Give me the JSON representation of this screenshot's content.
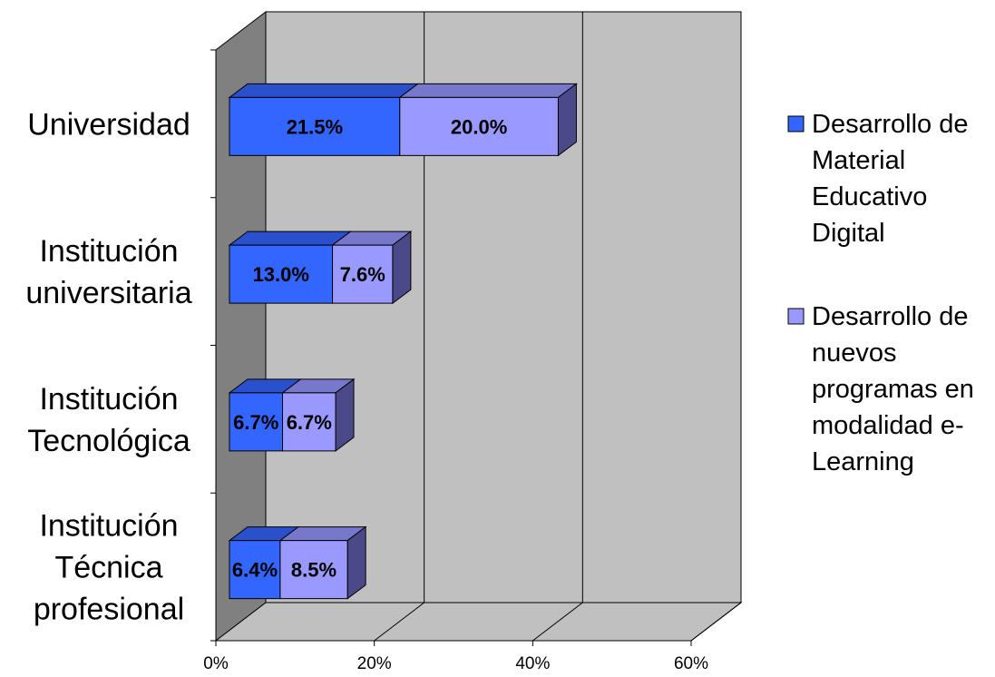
{
  "chart_data": {
    "type": "bar",
    "orientation": "horizontal",
    "stacked": true,
    "three_d": true,
    "categories": [
      "Universidad",
      "Institución universitaria",
      "Institución Tecnológica",
      "Institución Técnica profesional"
    ],
    "series": [
      {
        "name": "Desarrollo de Material Educativo Digital",
        "values": [
          21.5,
          13.0,
          6.7,
          6.4
        ],
        "labels": [
          "21.5%",
          "13.0%",
          "6.7%",
          "6.4%"
        ]
      },
      {
        "name": "Desarrollo de nuevos programas en modalidad e-Learning",
        "values": [
          20.0,
          7.6,
          6.7,
          8.5
        ],
        "labels": [
          "20.0%",
          "7.6%",
          "6.7%",
          "8.5%"
        ]
      }
    ],
    "xlim": [
      0,
      60
    ],
    "xticks": [
      "0%",
      "20%",
      "40%",
      "60%"
    ],
    "grid": "vertical",
    "legend": "right",
    "title": "",
    "xlabel": "",
    "ylabel": ""
  },
  "legend": {
    "items": [
      {
        "lines": [
          "Desarrollo de",
          "Material",
          "Educativo",
          "Digital"
        ]
      },
      {
        "lines": [
          "Desarrollo de",
          "nuevos",
          "programas en",
          "modalidad e-",
          "Learning"
        ]
      }
    ]
  },
  "category_lines": [
    [
      "Universidad"
    ],
    [
      "Institución",
      "universitaria"
    ],
    [
      "Institución",
      "Tecnológica"
    ],
    [
      "Institución",
      "Técnica",
      "profesional"
    ]
  ],
  "colors": {
    "series1": "#3366ff",
    "series1_top": "#2a50cc",
    "series1_side": "#1f3da8",
    "series2": "#9999ff",
    "series2_top": "#7777cc",
    "series2_side": "#4a4a88",
    "wall": "#c0c0c0",
    "side_wall": "#808080",
    "floor": "#c0c0c0"
  }
}
